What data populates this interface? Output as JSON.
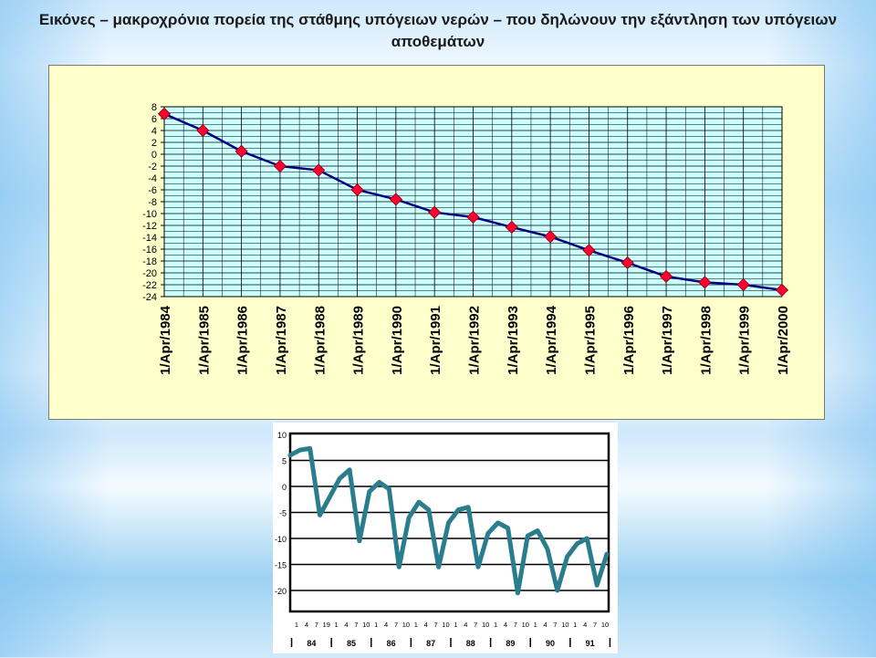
{
  "slide": {
    "title": "Εικόνες – μακροχρόνια πορεία της στάθμης υπόγειων νερών – που δηλώνουν την εξάντληση των υπόγειων αποθεμάτων"
  },
  "colors": {
    "plot_bg_top": "#ccffff",
    "panel_bg_top": "#ffffcc",
    "line_top": "#000080",
    "marker_top": "#ff0033",
    "line_bottom": "#2a7d8c",
    "grid": "#000000"
  },
  "chart_data": [
    {
      "type": "line",
      "x": [
        "1/Apr/1984",
        "1/Apr/1985",
        "1/Apr/1986",
        "1/Apr/1987",
        "1/Apr/1988",
        "1/Apr/1989",
        "1/Apr/1990",
        "1/Apr/1991",
        "1/Apr/1992",
        "1/Apr/1993",
        "1/Apr/1994",
        "1/Apr/1995",
        "1/Apr/1996",
        "1/Apr/1997",
        "1/Apr/1998",
        "1/Apr/1999",
        "1/Apr/2000"
      ],
      "series": [
        {
          "values": [
            6.8,
            4.0,
            0.5,
            -2.0,
            -2.7,
            -6.0,
            -7.6,
            -9.8,
            -10.6,
            -12.3,
            -13.9,
            -16.2,
            -18.3,
            -20.6,
            -21.6,
            -22.0,
            -22.9
          ]
        }
      ],
      "y_ticks": [
        "8",
        "6",
        "4",
        "2",
        "0",
        "-2",
        "-4",
        "-6",
        "-8",
        "-10",
        "-12",
        "-14",
        "-16",
        "-18",
        "-20",
        "-22",
        "-24"
      ],
      "ylim": [
        -24,
        8
      ],
      "grid": true
    },
    {
      "type": "line",
      "y_ticks": [
        "10",
        "5",
        "0",
        "-5",
        "-10",
        "-15",
        "-20"
      ],
      "ylim": [
        -22,
        10
      ],
      "x_month_labels": [
        "1",
        "4",
        "7",
        "19",
        "1",
        "4",
        "7",
        "10",
        "1",
        "4",
        "7",
        "10",
        "1",
        "4",
        "7",
        "10",
        "1",
        "4",
        "7",
        "10",
        "1",
        "4",
        "7",
        "10",
        "1",
        "4",
        "7",
        "10",
        "1",
        "4",
        "7",
        "10"
      ],
      "year_labels": [
        "84",
        "85",
        "86",
        "87",
        "88",
        "89",
        "90",
        "91"
      ],
      "series": [
        {
          "values": [
            6.0,
            7.0,
            7.3,
            -5.5,
            -2.0,
            1.5,
            3.2,
            -10.5,
            -1.0,
            0.8,
            -0.5,
            -15.5,
            -6.0,
            -3.0,
            -4.5,
            -15.5,
            -7.0,
            -4.5,
            -4.0,
            -15.5,
            -9.0,
            -7.0,
            -8.0,
            -20.5,
            -9.5,
            -8.5,
            -12.0,
            -20.0,
            -13.5,
            -11.0,
            -10.0,
            -19.0,
            -13.0
          ]
        }
      ],
      "grid": true
    }
  ]
}
